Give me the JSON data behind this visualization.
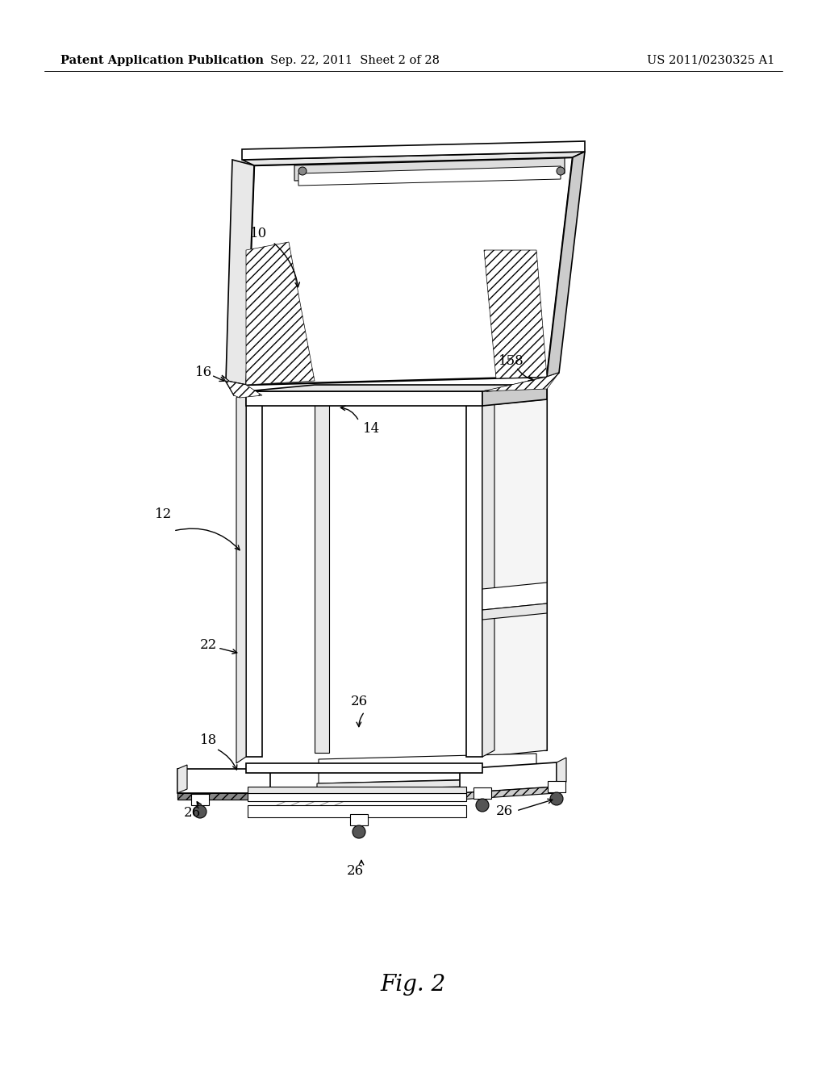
{
  "bg_color": "#ffffff",
  "header_left": "Patent Application Publication",
  "header_center": "Sep. 22, 2011  Sheet 2 of 28",
  "header_right": "US 2011/0230325 A1",
  "caption": "Fig. 2",
  "header_fontsize": 10.5,
  "caption_fontsize": 20,
  "label_fontsize": 12
}
